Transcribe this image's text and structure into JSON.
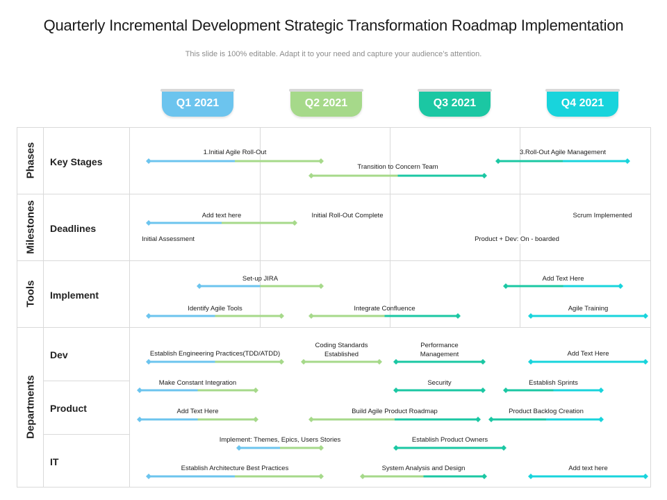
{
  "title": "Quarterly Incremental Development Strategic Transformation Roadmap Implementation",
  "subtitle": "This slide is 100% editable. Adapt it to your need and capture your audience’s attention.",
  "quarters": [
    {
      "label": "Q1 2021",
      "color": "#6cc4ee"
    },
    {
      "label": "Q2 2021",
      "color": "#a6d98a"
    },
    {
      "label": "Q3 2021",
      "color": "#1bc7a3"
    },
    {
      "label": "Q4 2021",
      "color": "#18d4dc"
    }
  ],
  "categories": [
    {
      "label": "Phases"
    },
    {
      "label": "Milestones"
    },
    {
      "label": "Tools"
    },
    {
      "label": "Departments"
    }
  ],
  "rows": [
    {
      "label": "Key Stages"
    },
    {
      "label": "Deadlines"
    },
    {
      "label": "Implement"
    },
    {
      "label": "Dev"
    },
    {
      "label": "Product"
    },
    {
      "label": "IT"
    }
  ],
  "bars": [
    {
      "label": "1.Initial  Agile Roll-Out",
      "colors": [
        "#6cc4ee",
        "#a6d98a"
      ]
    },
    {
      "label": "3.Roll-Out  Agile Management",
      "colors": [
        "#1bc7a3",
        "#18d4dc"
      ]
    },
    {
      "label": "Transition to Concern Team",
      "colors": [
        "#a6d98a",
        "#1bc7a3"
      ]
    },
    {
      "label": "Add text here",
      "colors": [
        "#6cc4ee",
        "#a6d98a"
      ]
    },
    {
      "label": "Set-up JIRA",
      "colors": [
        "#6cc4ee",
        "#a6d98a"
      ]
    },
    {
      "label": "Add Text Here",
      "colors": [
        "#1bc7a3",
        "#18d4dc"
      ]
    },
    {
      "label": "Identify Agile Tools",
      "colors": [
        "#6cc4ee",
        "#a6d98a"
      ]
    },
    {
      "label": "Integrate Confluence",
      "colors": [
        "#a6d98a",
        "#1bc7a3"
      ]
    },
    {
      "label": "Agile Training",
      "colors": [
        "#18d4dc",
        "#18d4dc"
      ]
    },
    {
      "label": "Establish Engineering Practices(TDD/ATDD)",
      "colors": [
        "#6cc4ee",
        "#a6d98a"
      ]
    },
    {
      "label": "Coding Standards\nEstablished",
      "colors": [
        "#a6d98a",
        "#a6d98a"
      ]
    },
    {
      "label": "Performance\nManagement",
      "colors": [
        "#1bc7a3",
        "#1bc7a3"
      ]
    },
    {
      "label": "Add Text Here",
      "colors": [
        "#18d4dc",
        "#18d4dc"
      ]
    },
    {
      "label": "Make Constant Integration",
      "colors": [
        "#6cc4ee",
        "#a6d98a"
      ]
    },
    {
      "label": "Security",
      "colors": [
        "#1bc7a3",
        "#1bc7a3"
      ]
    },
    {
      "label": "Establish Sprints",
      "colors": [
        "#1bc7a3",
        "#18d4dc"
      ]
    },
    {
      "label": "Add Text Here",
      "colors": [
        "#6cc4ee",
        "#a6d98a"
      ]
    },
    {
      "label": "Build Agile Product Roadmap",
      "colors": [
        "#a6d98a",
        "#1bc7a3"
      ]
    },
    {
      "label": "Product Backlog Creation",
      "colors": [
        "#1bc7a3",
        "#18d4dc"
      ]
    },
    {
      "label": "Implement: Themes, Epics, Users Stories",
      "colors": [
        "#6cc4ee",
        "#a6d98a"
      ]
    },
    {
      "label": "Establish Product Owners",
      "colors": [
        "#1bc7a3",
        "#1bc7a3"
      ]
    },
    {
      "label": "Establish Architecture Best Practices",
      "colors": [
        "#6cc4ee",
        "#a6d98a"
      ]
    },
    {
      "label": "System Analysis and Design",
      "colors": [
        "#a6d98a",
        "#1bc7a3"
      ]
    },
    {
      "label": "Add text here",
      "colors": [
        "#18d4dc",
        "#18d4dc"
      ]
    }
  ],
  "text_labels": [
    {
      "label": "Initial Roll-Out Complete"
    },
    {
      "label": "Scrum Implemented"
    },
    {
      "label": "Initial Assessment"
    },
    {
      "label": "Product + Dev: On - boarded"
    }
  ]
}
